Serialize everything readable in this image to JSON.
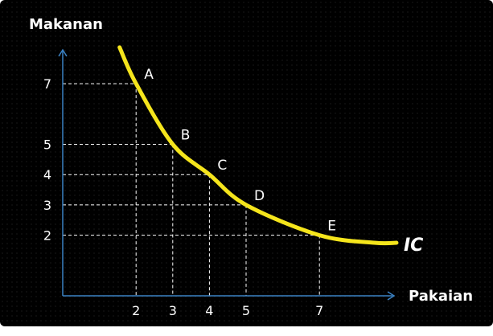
{
  "chart_data": {
    "type": "line",
    "xlabel": "Pakaian",
    "ylabel": "Makanan",
    "curve_label": "IC",
    "x_ticks": [
      2,
      3,
      4,
      5,
      7
    ],
    "y_ticks": [
      7,
      5,
      4,
      3,
      2
    ],
    "xlim": [
      0,
      9.5
    ],
    "ylim": [
      0,
      8.5
    ],
    "series": [
      {
        "name": "IC",
        "points": [
          {
            "label": "A",
            "x": 2,
            "y": 7
          },
          {
            "label": "B",
            "x": 3,
            "y": 5
          },
          {
            "label": "C",
            "x": 4,
            "y": 4
          },
          {
            "label": "D",
            "x": 5,
            "y": 3
          },
          {
            "label": "E",
            "x": 7,
            "y": 2
          }
        ]
      }
    ],
    "grid": false,
    "guide_lines": "dashed white projections from each point to both axes",
    "colors": {
      "background": "#000000",
      "curve": "#f5e51c",
      "axes": "#3b82c4",
      "text": "#ffffff"
    }
  }
}
